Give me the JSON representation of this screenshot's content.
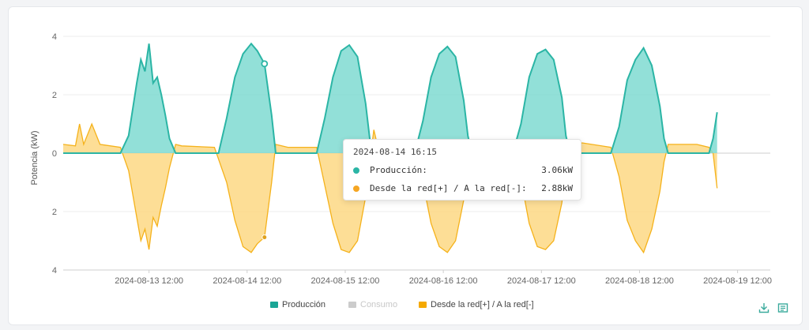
{
  "chart_data": {
    "type": "area",
    "ylabel": "Potencia (kW)",
    "ylim": [
      -4,
      4
    ],
    "yticks": [
      {
        "value": 4,
        "label": "4"
      },
      {
        "value": 2,
        "label": "2"
      },
      {
        "value": 0,
        "label": "0"
      },
      {
        "value": -2,
        "label": "2"
      },
      {
        "value": -4,
        "label": "4"
      }
    ],
    "xlim": [
      "2024-08-12 15:00",
      "2024-08-19 20:00"
    ],
    "xticks": [
      "2024-08-13 12:00",
      "2024-08-14 12:00",
      "2024-08-15 12:00",
      "2024-08-16 12:00",
      "2024-08-17 12:00",
      "2024-08-18 12:00",
      "2024-08-19 12:00"
    ],
    "grid": true,
    "legend_position": "bottom",
    "series": [
      {
        "name": "Producción",
        "color": "#2bb5a5",
        "fill": "#7fdbd1",
        "points": [
          [
            "2024-08-12 15:00",
            0
          ],
          [
            "2024-08-13 05:00",
            0
          ],
          [
            "2024-08-13 07:00",
            0.6
          ],
          [
            "2024-08-13 09:00",
            2.4
          ],
          [
            "2024-08-13 10:00",
            3.2
          ],
          [
            "2024-08-13 11:00",
            2.8
          ],
          [
            "2024-08-13 12:00",
            3.75
          ],
          [
            "2024-08-13 13:00",
            2.4
          ],
          [
            "2024-08-13 14:00",
            2.6
          ],
          [
            "2024-08-13 15:00",
            2.0
          ],
          [
            "2024-08-13 16:00",
            1.3
          ],
          [
            "2024-08-13 17:00",
            0.5
          ],
          [
            "2024-08-13 18:30",
            0
          ],
          [
            "2024-08-14 05:00",
            0
          ],
          [
            "2024-08-14 07:00",
            1.2
          ],
          [
            "2024-08-14 09:00",
            2.6
          ],
          [
            "2024-08-14 11:00",
            3.4
          ],
          [
            "2024-08-14 13:00",
            3.75
          ],
          [
            "2024-08-14 14:30",
            3.5
          ],
          [
            "2024-08-14 16:15",
            3.06
          ],
          [
            "2024-08-14 18:00",
            1.3
          ],
          [
            "2024-08-14 19:00",
            0
          ],
          [
            "2024-08-15 05:00",
            0
          ],
          [
            "2024-08-15 07:00",
            1.2
          ],
          [
            "2024-08-15 09:00",
            2.6
          ],
          [
            "2024-08-15 11:00",
            3.5
          ],
          [
            "2024-08-15 13:00",
            3.7
          ],
          [
            "2024-08-15 15:00",
            3.3
          ],
          [
            "2024-08-15 17:00",
            1.7
          ],
          [
            "2024-08-15 18:00",
            0.5
          ],
          [
            "2024-08-15 19:00",
            0
          ],
          [
            "2024-08-16 05:00",
            0
          ],
          [
            "2024-08-16 07:00",
            1.1
          ],
          [
            "2024-08-16 09:00",
            2.6
          ],
          [
            "2024-08-16 11:00",
            3.4
          ],
          [
            "2024-08-16 13:00",
            3.65
          ],
          [
            "2024-08-16 15:00",
            3.3
          ],
          [
            "2024-08-16 17:00",
            1.8
          ],
          [
            "2024-08-16 18:00",
            0.6
          ],
          [
            "2024-08-16 19:00",
            0
          ],
          [
            "2024-08-17 05:00",
            0
          ],
          [
            "2024-08-17 07:00",
            1.0
          ],
          [
            "2024-08-17 09:00",
            2.6
          ],
          [
            "2024-08-17 11:00",
            3.4
          ],
          [
            "2024-08-17 13:00",
            3.55
          ],
          [
            "2024-08-17 15:00",
            3.2
          ],
          [
            "2024-08-17 17:00",
            1.9
          ],
          [
            "2024-08-17 18:00",
            0.6
          ],
          [
            "2024-08-17 19:00",
            0
          ],
          [
            "2024-08-18 05:00",
            0
          ],
          [
            "2024-08-18 07:00",
            0.9
          ],
          [
            "2024-08-18 09:00",
            2.5
          ],
          [
            "2024-08-18 11:00",
            3.2
          ],
          [
            "2024-08-18 13:00",
            3.6
          ],
          [
            "2024-08-18 15:00",
            3.0
          ],
          [
            "2024-08-18 17:00",
            1.6
          ],
          [
            "2024-08-18 18:00",
            0.5
          ],
          [
            "2024-08-18 19:00",
            0
          ],
          [
            "2024-08-19 05:00",
            0
          ],
          [
            "2024-08-19 06:00",
            0.5
          ],
          [
            "2024-08-19 07:00",
            1.4
          ]
        ]
      },
      {
        "name": "Consumo",
        "color": "#cccccc",
        "hidden": true
      },
      {
        "name": "Desde la red[+] / A la red[-]",
        "color": "#f5b21b",
        "fill": "#fdd884",
        "points": [
          [
            "2024-08-12 15:00",
            0.3
          ],
          [
            "2024-08-12 18:00",
            0.25
          ],
          [
            "2024-08-12 19:00",
            1.0
          ],
          [
            "2024-08-12 20:00",
            0.3
          ],
          [
            "2024-08-12 22:00",
            1.0
          ],
          [
            "2024-08-13 00:00",
            0.3
          ],
          [
            "2024-08-13 05:00",
            0.2
          ],
          [
            "2024-08-13 07:00",
            -0.6
          ],
          [
            "2024-08-13 09:00",
            -2.2
          ],
          [
            "2024-08-13 10:00",
            -3.0
          ],
          [
            "2024-08-13 11:00",
            -2.6
          ],
          [
            "2024-08-13 12:00",
            -3.3
          ],
          [
            "2024-08-13 13:00",
            -2.2
          ],
          [
            "2024-08-13 14:00",
            -2.5
          ],
          [
            "2024-08-13 15:00",
            -1.8
          ],
          [
            "2024-08-13 16:00",
            -1.2
          ],
          [
            "2024-08-13 17:00",
            -0.5
          ],
          [
            "2024-08-13 18:30",
            0.3
          ],
          [
            "2024-08-13 20:00",
            0.25
          ],
          [
            "2024-08-14 04:00",
            0.2
          ],
          [
            "2024-08-14 07:00",
            -1.0
          ],
          [
            "2024-08-14 09:00",
            -2.3
          ],
          [
            "2024-08-14 11:00",
            -3.2
          ],
          [
            "2024-08-14 13:00",
            -3.4
          ],
          [
            "2024-08-14 14:30",
            -3.1
          ],
          [
            "2024-08-14 16:15",
            -2.88
          ],
          [
            "2024-08-14 18:00",
            -1.0
          ],
          [
            "2024-08-14 19:00",
            0.3
          ],
          [
            "2024-08-14 22:00",
            0.2
          ],
          [
            "2024-08-15 05:00",
            0.2
          ],
          [
            "2024-08-15 07:00",
            -1.1
          ],
          [
            "2024-08-15 09:00",
            -2.4
          ],
          [
            "2024-08-15 11:00",
            -3.3
          ],
          [
            "2024-08-15 13:00",
            -3.4
          ],
          [
            "2024-08-15 15:00",
            -3.0
          ],
          [
            "2024-08-15 17:00",
            -1.5
          ],
          [
            "2024-08-15 18:00",
            -0.3
          ],
          [
            "2024-08-15 19:00",
            0.8
          ],
          [
            "2024-08-15 20:00",
            0.2
          ],
          [
            "2024-08-16 05:00",
            0.2
          ],
          [
            "2024-08-16 07:00",
            -1.0
          ],
          [
            "2024-08-16 09:00",
            -2.4
          ],
          [
            "2024-08-16 11:00",
            -3.2
          ],
          [
            "2024-08-16 13:00",
            -3.4
          ],
          [
            "2024-08-16 15:00",
            -3.0
          ],
          [
            "2024-08-16 17:00",
            -1.6
          ],
          [
            "2024-08-16 18:00",
            -0.4
          ],
          [
            "2024-08-16 19:00",
            0.3
          ],
          [
            "2024-08-17 05:00",
            0.2
          ],
          [
            "2024-08-17 07:00",
            -0.9
          ],
          [
            "2024-08-17 09:00",
            -2.4
          ],
          [
            "2024-08-17 11:00",
            -3.2
          ],
          [
            "2024-08-17 13:00",
            -3.3
          ],
          [
            "2024-08-17 15:00",
            -3.0
          ],
          [
            "2024-08-17 17:00",
            -1.7
          ],
          [
            "2024-08-17 18:00",
            -0.4
          ],
          [
            "2024-08-17 19:00",
            0.3
          ],
          [
            "2024-08-17 22:00",
            0.35
          ],
          [
            "2024-08-18 05:00",
            0.2
          ],
          [
            "2024-08-18 07:00",
            -0.8
          ],
          [
            "2024-08-18 09:00",
            -2.3
          ],
          [
            "2024-08-18 11:00",
            -3.0
          ],
          [
            "2024-08-18 13:00",
            -3.4
          ],
          [
            "2024-08-18 15:00",
            -2.6
          ],
          [
            "2024-08-18 17:00",
            -1.3
          ],
          [
            "2024-08-18 18:00",
            -0.3
          ],
          [
            "2024-08-18 19:00",
            0.3
          ],
          [
            "2024-08-19 02:00",
            0.3
          ],
          [
            "2024-08-19 05:00",
            0.2
          ],
          [
            "2024-08-19 06:00",
            0.0
          ],
          [
            "2024-08-19 07:00",
            -1.2
          ]
        ]
      }
    ],
    "tooltip": {
      "title": "2024-08-14 16:15",
      "rows": [
        {
          "name": "Producción:",
          "value": "3.06kW",
          "color": "#2bb5a5"
        },
        {
          "name": "Desde la red[+] / A la red[-]:",
          "value": "2.88kW",
          "color": "#f5a623"
        }
      ]
    }
  },
  "legend": [
    {
      "label": "Producción",
      "color": "#1aa595",
      "inactive": false
    },
    {
      "label": "Consumo",
      "color": "#cccccc",
      "inactive": true
    },
    {
      "label": "Desde la red[+] / A la red[-]",
      "color": "#f5a900",
      "inactive": false
    }
  ],
  "toolbox": [
    {
      "icon": "download-icon"
    },
    {
      "icon": "data-view-icon"
    }
  ]
}
